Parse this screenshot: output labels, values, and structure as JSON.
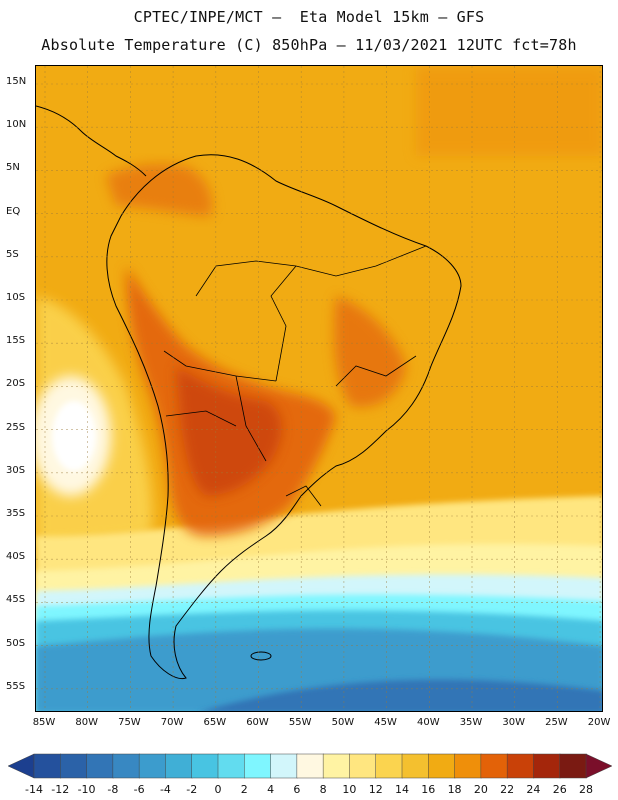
{
  "header": {
    "line1": "CPTEC/INPE/MCT –  Eta Model 15km – GFS",
    "line2": "Absolute Temperature (C) 850hPa – 11/03/2021 12UTC fct=78h"
  },
  "map": {
    "lat_labels": [
      "15N",
      "10N",
      "5N",
      "EQ",
      "5S",
      "10S",
      "15S",
      "20S",
      "25S",
      "30S",
      "35S",
      "40S",
      "45S",
      "50S",
      "55S"
    ],
    "lon_labels": [
      "85W",
      "80W",
      "75W",
      "70W",
      "65W",
      "60W",
      "55W",
      "50W",
      "45W",
      "40W",
      "35W",
      "30W",
      "25W",
      "20W"
    ],
    "background_color": "#f2a80e",
    "ocean_cold_color": "#3a9fd0",
    "land_hot_color": "#d8651a"
  },
  "colorbar": {
    "labels": [
      "-14",
      "-12",
      "-10",
      "-8",
      "-6",
      "-4",
      "-2",
      "0",
      "2",
      "4",
      "6",
      "8",
      "10",
      "12",
      "14",
      "16",
      "18",
      "20",
      "22",
      "24",
      "26",
      "28"
    ],
    "colors": [
      "#1c3f8f",
      "#24519d",
      "#2b62a8",
      "#3275b6",
      "#3888c2",
      "#3c9ccd",
      "#40afd6",
      "#48c4e2",
      "#62dcef",
      "#7ff6ff",
      "#d2f6fb",
      "#fff8e1",
      "#fff3a3",
      "#ffe680",
      "#fbd44f",
      "#f4c02f",
      "#f1ab13",
      "#ef8f0a",
      "#e36208",
      "#c94108",
      "#a4260b",
      "#7a1a12",
      "#7a0f2a"
    ]
  }
}
